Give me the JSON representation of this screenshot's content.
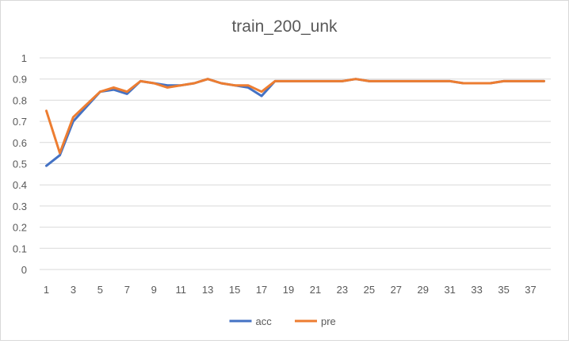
{
  "chart_data": {
    "type": "line",
    "title": "train_200_unk",
    "xlabel": "",
    "ylabel": "",
    "ylim": [
      0,
      1
    ],
    "y_ticks": [
      "0",
      "0.1",
      "0.2",
      "0.3",
      "0.4",
      "0.5",
      "0.6",
      "0.7",
      "0.8",
      "0.9",
      "1"
    ],
    "x": [
      1,
      2,
      3,
      4,
      5,
      6,
      7,
      8,
      9,
      10,
      11,
      12,
      13,
      14,
      15,
      16,
      17,
      18,
      19,
      20,
      21,
      22,
      23,
      24,
      25,
      26,
      27,
      28,
      29,
      30,
      31,
      32,
      33,
      34,
      35,
      36,
      37,
      38
    ],
    "x_tick_labels": [
      "1",
      "3",
      "5",
      "7",
      "9",
      "11",
      "13",
      "15",
      "17",
      "19",
      "21",
      "23",
      "25",
      "27",
      "29",
      "31",
      "33",
      "35",
      "37"
    ],
    "grid": true,
    "legend_position": "bottom",
    "series": [
      {
        "name": "acc",
        "color": "#4472C4",
        "values": [
          0.49,
          0.54,
          0.7,
          0.77,
          0.84,
          0.85,
          0.83,
          0.89,
          0.88,
          0.87,
          0.87,
          0.88,
          0.9,
          0.88,
          0.87,
          0.86,
          0.82,
          0.89,
          0.89,
          0.89,
          0.89,
          0.89,
          0.89,
          0.9,
          0.89,
          0.89,
          0.89,
          0.89,
          0.89,
          0.89,
          0.89,
          0.88,
          0.88,
          0.88,
          0.89,
          0.89,
          0.89,
          0.89
        ]
      },
      {
        "name": "pre",
        "color": "#ED7D31",
        "values": [
          0.75,
          0.55,
          0.72,
          0.78,
          0.84,
          0.86,
          0.84,
          0.89,
          0.88,
          0.86,
          0.87,
          0.88,
          0.9,
          0.88,
          0.87,
          0.87,
          0.84,
          0.89,
          0.89,
          0.89,
          0.89,
          0.89,
          0.89,
          0.9,
          0.89,
          0.89,
          0.89,
          0.89,
          0.89,
          0.89,
          0.89,
          0.88,
          0.88,
          0.88,
          0.89,
          0.89,
          0.89,
          0.89
        ]
      }
    ]
  }
}
